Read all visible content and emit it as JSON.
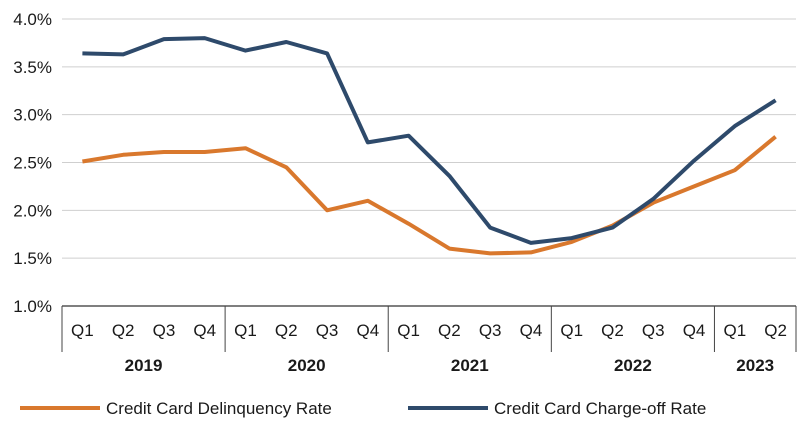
{
  "chart_data": {
    "type": "line",
    "title": "",
    "xlabel": "",
    "ylabel": "",
    "ylim": [
      1.0,
      4.0
    ],
    "yticks": [
      "1.0%",
      "1.5%",
      "2.0%",
      "2.5%",
      "3.0%",
      "3.5%",
      "4.0%"
    ],
    "ytick_values": [
      1.0,
      1.5,
      2.0,
      2.5,
      3.0,
      3.5,
      4.0
    ],
    "categories": [
      "Q1",
      "Q2",
      "Q3",
      "Q4",
      "Q1",
      "Q2",
      "Q3",
      "Q4",
      "Q1",
      "Q2",
      "Q3",
      "Q4",
      "Q1",
      "Q2",
      "Q3",
      "Q4",
      "Q1",
      "Q2"
    ],
    "year_groups": [
      {
        "label": "2019",
        "count": 4
      },
      {
        "label": "2020",
        "count": 4
      },
      {
        "label": "2021",
        "count": 4
      },
      {
        "label": "2022",
        "count": 4
      },
      {
        "label": "2023",
        "count": 2
      }
    ],
    "grid": "horizontal",
    "legend_position": "bottom",
    "series": [
      {
        "name": "Credit Card Delinquency Rate",
        "color": "#d9782d",
        "values": [
          2.51,
          2.58,
          2.61,
          2.61,
          2.65,
          2.45,
          2.0,
          2.1,
          1.86,
          1.6,
          1.55,
          1.56,
          1.67,
          1.84,
          2.08,
          2.25,
          2.42,
          2.77
        ]
      },
      {
        "name": "Credit Card Charge-off Rate",
        "color": "#2e4a6b",
        "values": [
          3.64,
          3.63,
          3.79,
          3.8,
          3.67,
          3.76,
          3.64,
          2.71,
          2.78,
          2.36,
          1.82,
          1.66,
          1.71,
          1.82,
          2.12,
          2.52,
          2.88,
          3.15
        ]
      }
    ]
  }
}
